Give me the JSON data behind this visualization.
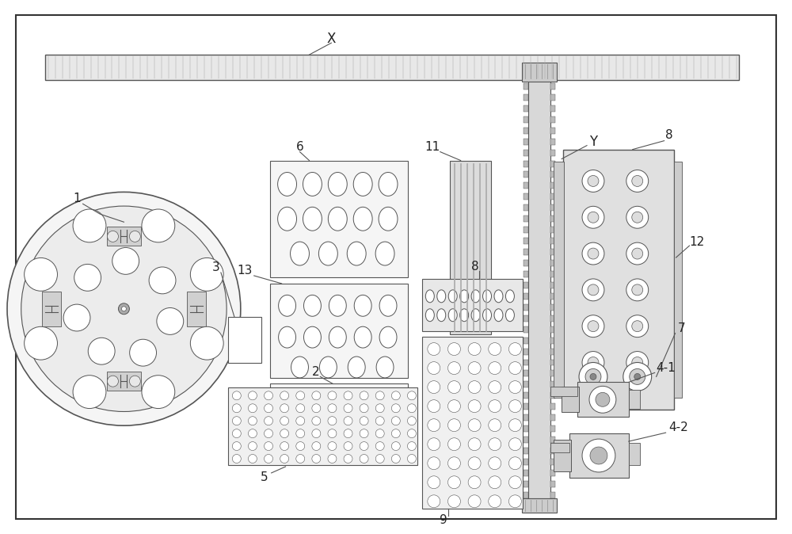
{
  "figsize": [
    10.0,
    6.74
  ],
  "dpi": 100,
  "lc": "#555555",
  "fc_light": "#f0f0f0",
  "fc_mid": "#e0e0e0",
  "fc_dark": "#cccccc",
  "bg": "white"
}
